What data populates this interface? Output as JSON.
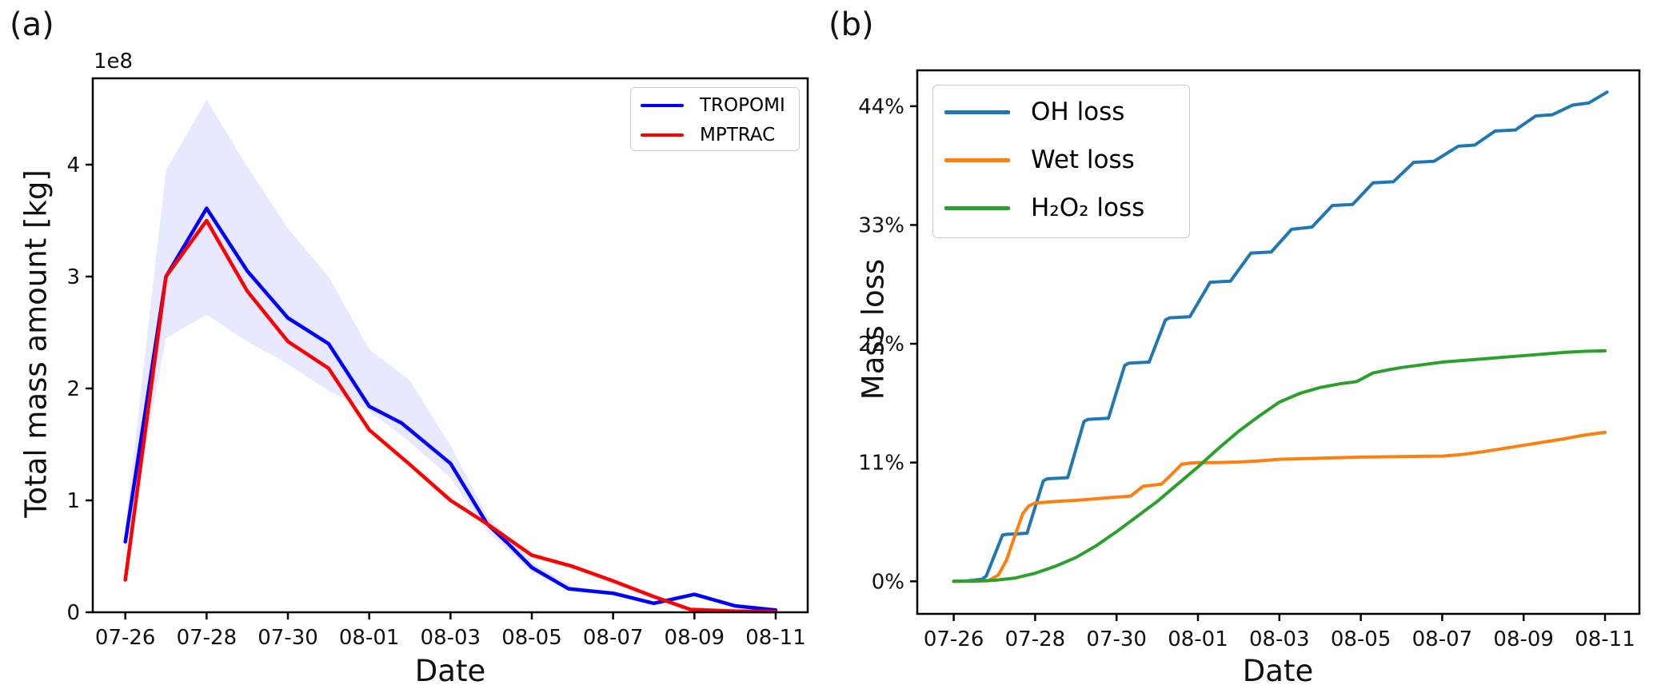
{
  "figure": {
    "panel_a_tag": "(a)",
    "panel_b_tag": "(b)"
  },
  "chart_data": [
    {
      "id": "a",
      "type": "line",
      "title": "",
      "xlabel": "Date",
      "ylabel": "Total mass amount [kg]",
      "y_offset_label": "1e8",
      "x_tick_labels": [
        "07-26",
        "07-28",
        "07-30",
        "08-01",
        "08-03",
        "08-05",
        "08-07",
        "08-09",
        "08-11"
      ],
      "x_tick_days": [
        0,
        2,
        4,
        6,
        8,
        10,
        12,
        14,
        16
      ],
      "y_ticks": [
        0,
        1,
        2,
        3,
        4
      ],
      "y_tick_labels": [
        "0",
        "1",
        "2",
        "3",
        "4"
      ],
      "xlim_days": [
        -0.78,
        16.8
      ],
      "ylim_1e8": [
        0,
        4.77
      ],
      "grid": false,
      "legend_position": "upper right",
      "units": "1e8 kg",
      "series": [
        {
          "name": "TROPOMI",
          "color": "#0000ff",
          "points": [
            [
              0,
              0.63
            ],
            [
              1,
              3.0
            ],
            [
              2,
              3.61
            ],
            [
              3,
              3.05
            ],
            [
              4,
              2.63
            ],
            [
              5,
              2.4
            ],
            [
              6,
              1.84
            ],
            [
              6.8,
              1.69
            ],
            [
              8,
              1.33
            ],
            [
              8.9,
              0.79
            ],
            [
              9.4,
              0.62
            ],
            [
              10,
              0.4
            ],
            [
              10.9,
              0.21
            ],
            [
              12,
              0.17
            ],
            [
              13,
              0.08
            ],
            [
              14,
              0.16
            ],
            [
              15,
              0.057
            ],
            [
              16,
              0.02
            ]
          ]
        },
        {
          "name": "MPTRAC",
          "color": "#ff0000",
          "points": [
            [
              0,
              0.29
            ],
            [
              1,
              3.0
            ],
            [
              2,
              3.5
            ],
            [
              3,
              2.87
            ],
            [
              4,
              2.42
            ],
            [
              5,
              2.18
            ],
            [
              6,
              1.63
            ],
            [
              7,
              1.32
            ],
            [
              8,
              1.0
            ],
            [
              8.9,
              0.79
            ],
            [
              10,
              0.51
            ],
            [
              11,
              0.41
            ],
            [
              12,
              0.28
            ],
            [
              13,
              0.14
            ],
            [
              13.9,
              0.025
            ],
            [
              15,
              0.01
            ],
            [
              16,
              0.005
            ]
          ]
        }
      ],
      "band": {
        "applies_to": "TROPOMI",
        "color": "#0000ff",
        "opacity": 0.09,
        "upper": [
          [
            0,
            0.75
          ],
          [
            1,
            3.95
          ],
          [
            2,
            4.58
          ],
          [
            3,
            3.98
          ],
          [
            4,
            3.43
          ],
          [
            5,
            3.0
          ],
          [
            6,
            2.35
          ],
          [
            7,
            2.07
          ],
          [
            8,
            1.49
          ],
          [
            8.9,
            0.86
          ],
          [
            10,
            0.45
          ],
          [
            11,
            0.23
          ],
          [
            12,
            0.18
          ],
          [
            13,
            0.09
          ],
          [
            14,
            0.17
          ],
          [
            15,
            0.06
          ],
          [
            16,
            0.025
          ]
        ],
        "lower": [
          [
            0,
            0.52
          ],
          [
            1,
            2.45
          ],
          [
            2,
            2.66
          ],
          [
            3,
            2.42
          ],
          [
            4,
            2.22
          ],
          [
            5,
            1.98
          ],
          [
            6,
            1.8
          ],
          [
            7,
            1.52
          ],
          [
            8,
            1.2
          ],
          [
            8.9,
            0.72
          ],
          [
            10,
            0.36
          ],
          [
            11,
            0.19
          ],
          [
            12,
            0.15
          ],
          [
            13,
            0.07
          ],
          [
            14,
            0.14
          ],
          [
            15,
            0.05
          ],
          [
            16,
            0.015
          ]
        ]
      }
    },
    {
      "id": "b",
      "type": "line",
      "title": "",
      "xlabel": "Date",
      "ylabel": "Mass loss",
      "x_tick_labels": [
        "07-26",
        "07-28",
        "07-30",
        "08-01",
        "08-03",
        "08-05",
        "08-07",
        "08-09",
        "08-11"
      ],
      "x_tick_days": [
        0,
        2,
        4,
        6,
        8,
        10,
        12,
        14,
        16
      ],
      "y_ticks": [
        0,
        11,
        22,
        33,
        44
      ],
      "y_tick_labels": [
        "0%",
        "11%",
        "22%",
        "33%",
        "44%"
      ],
      "xlim_days": [
        -0.9,
        16.85
      ],
      "ylim_pct": [
        -3.0,
        47.3
      ],
      "grid": false,
      "legend_position": "upper left",
      "units": "percent",
      "series": [
        {
          "name": "OH loss",
          "color": "#1f77b4",
          "points": [
            [
              0,
              0
            ],
            [
              0.35,
              0.05
            ],
            [
              0.7,
              0.2
            ],
            [
              0.8,
              0.5
            ],
            [
              1.2,
              4.3
            ],
            [
              1.3,
              4.35
            ],
            [
              1.8,
              4.45
            ],
            [
              2.2,
              9.3
            ],
            [
              2.3,
              9.5
            ],
            [
              2.8,
              9.6
            ],
            [
              3.2,
              14.8
            ],
            [
              3.3,
              15.0
            ],
            [
              3.8,
              15.1
            ],
            [
              4.2,
              20.0
            ],
            [
              4.3,
              20.2
            ],
            [
              4.8,
              20.3
            ],
            [
              5.2,
              24.2
            ],
            [
              5.3,
              24.4
            ],
            [
              5.8,
              24.5
            ],
            [
              6.3,
              27.7
            ],
            [
              6.8,
              27.8
            ],
            [
              7.3,
              30.4
            ],
            [
              7.8,
              30.5
            ],
            [
              8.3,
              32.6
            ],
            [
              8.8,
              32.8
            ],
            [
              9.3,
              34.8
            ],
            [
              9.8,
              34.9
            ],
            [
              10.3,
              36.9
            ],
            [
              10.8,
              37.0
            ],
            [
              11.3,
              38.8
            ],
            [
              11.8,
              38.9
            ],
            [
              12.4,
              40.3
            ],
            [
              12.8,
              40.4
            ],
            [
              13.3,
              41.7
            ],
            [
              13.8,
              41.8
            ],
            [
              14.3,
              43.1
            ],
            [
              14.7,
              43.2
            ],
            [
              15.2,
              44.1
            ],
            [
              15.6,
              44.3
            ],
            [
              16.05,
              45.3
            ]
          ]
        },
        {
          "name": "Wet loss",
          "color": "#ff7f0e",
          "points": [
            [
              0,
              0
            ],
            [
              0.85,
              0.05
            ],
            [
              1.1,
              0.6
            ],
            [
              1.3,
              2.0
            ],
            [
              1.5,
              4.2
            ],
            [
              1.7,
              6.3
            ],
            [
              1.85,
              7.0
            ],
            [
              2.0,
              7.25
            ],
            [
              2.5,
              7.4
            ],
            [
              3,
              7.5
            ],
            [
              3.5,
              7.65
            ],
            [
              4,
              7.8
            ],
            [
              4.35,
              7.9
            ],
            [
              4.65,
              8.8
            ],
            [
              5.1,
              9.0
            ],
            [
              5.3,
              9.7
            ],
            [
              5.6,
              10.85
            ],
            [
              5.8,
              10.95
            ],
            [
              6,
              11.0
            ],
            [
              6.5,
              11.0
            ],
            [
              7,
              11.05
            ],
            [
              7.5,
              11.15
            ],
            [
              8,
              11.3
            ],
            [
              9,
              11.4
            ],
            [
              10,
              11.5
            ],
            [
              11,
              11.55
            ],
            [
              12,
              11.6
            ],
            [
              12.5,
              11.75
            ],
            [
              13,
              12.0
            ],
            [
              14,
              12.6
            ],
            [
              15,
              13.2
            ],
            [
              15.5,
              13.55
            ],
            [
              16,
              13.8
            ]
          ]
        },
        {
          "name": "H₂O₂ loss",
          "color": "#2ca02c",
          "points": [
            [
              0,
              0
            ],
            [
              0.5,
              0.02
            ],
            [
              1,
              0.1
            ],
            [
              1.5,
              0.3
            ],
            [
              2,
              0.75
            ],
            [
              2.5,
              1.4
            ],
            [
              3,
              2.2
            ],
            [
              3.5,
              3.3
            ],
            [
              4,
              4.6
            ],
            [
              4.5,
              6.0
            ],
            [
              5,
              7.4
            ],
            [
              5.5,
              9.0
            ],
            [
              6,
              10.6
            ],
            [
              6.5,
              12.3
            ],
            [
              7,
              13.9
            ],
            [
              7.5,
              15.3
            ],
            [
              8,
              16.6
            ],
            [
              8.5,
              17.4
            ],
            [
              9,
              17.95
            ],
            [
              9.5,
              18.3
            ],
            [
              9.9,
              18.5
            ],
            [
              10.3,
              19.3
            ],
            [
              10.7,
              19.6
            ],
            [
              11,
              19.8
            ],
            [
              11.5,
              20.05
            ],
            [
              12,
              20.3
            ],
            [
              13,
              20.6
            ],
            [
              14,
              20.9
            ],
            [
              15,
              21.2
            ],
            [
              15.5,
              21.3
            ],
            [
              16,
              21.35
            ]
          ]
        }
      ]
    }
  ]
}
